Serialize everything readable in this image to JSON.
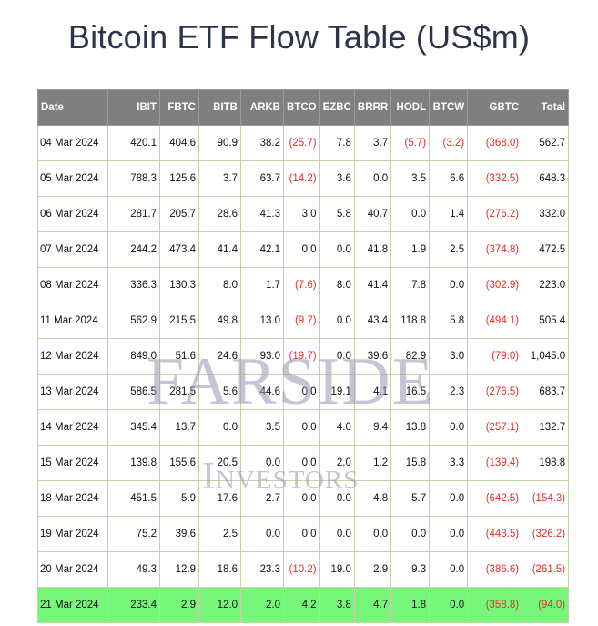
{
  "title": "Bitcoin ETF Flow Table (US$m)",
  "columns": [
    "Date",
    "IBIT",
    "FBTC",
    "BITB",
    "ARKB",
    "BTCO",
    "EZBC",
    "BRRR",
    "HODL",
    "BTCW",
    "GBTC",
    "Total"
  ],
  "rows": [
    {
      "cells": [
        "04 Mar 2024",
        "420.1",
        "404.6",
        "90.9",
        "38.2",
        "(25.7)",
        "7.8",
        "3.7",
        "(5.7)",
        "(3.2)",
        "(368.0)",
        "562.7"
      ],
      "highlight": false
    },
    {
      "cells": [
        "05 Mar 2024",
        "788.3",
        "125.6",
        "3.7",
        "63.7",
        "(14.2)",
        "3.6",
        "0.0",
        "3.5",
        "6.6",
        "(332.5)",
        "648.3"
      ],
      "highlight": false
    },
    {
      "cells": [
        "06 Mar 2024",
        "281.7",
        "205.7",
        "28.6",
        "41.3",
        "3.0",
        "5.8",
        "40.7",
        "0.0",
        "1.4",
        "(276.2)",
        "332.0"
      ],
      "highlight": false
    },
    {
      "cells": [
        "07 Mar 2024",
        "244.2",
        "473.4",
        "41.4",
        "42.1",
        "0.0",
        "0.0",
        "41.8",
        "1.9",
        "2.5",
        "(374.8)",
        "472.5"
      ],
      "highlight": false
    },
    {
      "cells": [
        "08 Mar 2024",
        "336.3",
        "130.3",
        "8.0",
        "1.7",
        "(7.6)",
        "8.0",
        "41.4",
        "7.8",
        "0.0",
        "(302.9)",
        "223.0"
      ],
      "highlight": false
    },
    {
      "cells": [
        "11 Mar 2024",
        "562.9",
        "215.5",
        "49.8",
        "13.0",
        "(9.7)",
        "0.0",
        "43.4",
        "118.8",
        "5.8",
        "(494.1)",
        "505.4"
      ],
      "highlight": false
    },
    {
      "cells": [
        "12 Mar 2024",
        "849.0",
        "51.6",
        "24.6",
        "93.0",
        "(19.7)",
        "0.0",
        "39.6",
        "82.9",
        "3.0",
        "(79.0)",
        "1,045.0"
      ],
      "highlight": false
    },
    {
      "cells": [
        "13 Mar 2024",
        "586.5",
        "281.5",
        "5.6",
        "44.6",
        "0.0",
        "19.1",
        "4.1",
        "16.5",
        "2.3",
        "(276.5)",
        "683.7"
      ],
      "highlight": false
    },
    {
      "cells": [
        "14 Mar 2024",
        "345.4",
        "13.7",
        "0.0",
        "3.5",
        "0.0",
        "4.0",
        "9.4",
        "13.8",
        "0.0",
        "(257.1)",
        "132.7"
      ],
      "highlight": false
    },
    {
      "cells": [
        "15 Mar 2024",
        "139.8",
        "155.6",
        "20.5",
        "0.0",
        "0.0",
        "2.0",
        "1.2",
        "15.8",
        "3.3",
        "(139.4)",
        "198.8"
      ],
      "highlight": false
    },
    {
      "cells": [
        "18 Mar 2024",
        "451.5",
        "5.9",
        "17.6",
        "2.7",
        "0.0",
        "0.0",
        "4.8",
        "5.7",
        "0.0",
        "(642.5)",
        "(154.3)"
      ],
      "highlight": false
    },
    {
      "cells": [
        "19 Mar 2024",
        "75.2",
        "39.6",
        "2.5",
        "0.0",
        "0.0",
        "0.0",
        "0.0",
        "0.0",
        "0.0",
        "(443.5)",
        "(326.2)"
      ],
      "highlight": false
    },
    {
      "cells": [
        "20 Mar 2024",
        "49.3",
        "12.9",
        "18.6",
        "23.3",
        "(10.2)",
        "19.0",
        "2.9",
        "9.3",
        "0.0",
        "(386.6)",
        "(261.5)"
      ],
      "highlight": false
    },
    {
      "cells": [
        "21 Mar 2024",
        "233.4",
        "2.9",
        "12.0",
        "2.0",
        "4.2",
        "3.8",
        "4.7",
        "1.8",
        "0.0",
        "(358.8)",
        "(94.0)"
      ],
      "highlight": true
    }
  ],
  "watermark": {
    "line1": "FARSIDE",
    "line2": "Investors"
  },
  "colors": {
    "header_bg": "#7f7f7f",
    "negative": "#e0302a",
    "highlight_row": "#77f77a",
    "grid": "#c9d1a8"
  }
}
